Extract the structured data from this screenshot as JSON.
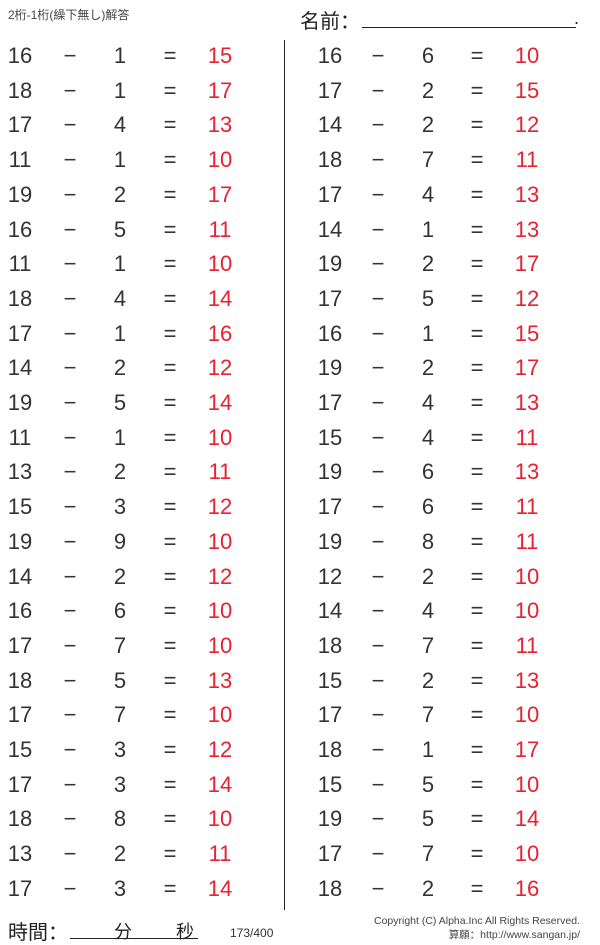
{
  "header": {
    "title": "2桁-1桁(繰下無し)解答",
    "name_label": "名前：",
    "name_end": "."
  },
  "colors": {
    "answer": "#e8202f",
    "text": "#333333"
  },
  "operator": "−",
  "equals": "=",
  "problems": {
    "left": [
      [
        16,
        1,
        15
      ],
      [
        18,
        1,
        17
      ],
      [
        17,
        4,
        13
      ],
      [
        11,
        1,
        10
      ],
      [
        19,
        2,
        17
      ],
      [
        16,
        5,
        11
      ],
      [
        11,
        1,
        10
      ],
      [
        18,
        4,
        14
      ],
      [
        17,
        1,
        16
      ],
      [
        14,
        2,
        12
      ],
      [
        19,
        5,
        14
      ],
      [
        11,
        1,
        10
      ],
      [
        13,
        2,
        11
      ],
      [
        15,
        3,
        12
      ],
      [
        19,
        9,
        10
      ],
      [
        14,
        2,
        12
      ],
      [
        16,
        6,
        10
      ],
      [
        17,
        7,
        10
      ],
      [
        18,
        5,
        13
      ],
      [
        17,
        7,
        10
      ],
      [
        15,
        3,
        12
      ],
      [
        17,
        3,
        14
      ],
      [
        18,
        8,
        10
      ],
      [
        13,
        2,
        11
      ],
      [
        17,
        3,
        14
      ]
    ],
    "right": [
      [
        16,
        6,
        10
      ],
      [
        17,
        2,
        15
      ],
      [
        14,
        2,
        12
      ],
      [
        18,
        7,
        11
      ],
      [
        17,
        4,
        13
      ],
      [
        14,
        1,
        13
      ],
      [
        19,
        2,
        17
      ],
      [
        17,
        5,
        12
      ],
      [
        16,
        1,
        15
      ],
      [
        19,
        2,
        17
      ],
      [
        17,
        4,
        13
      ],
      [
        15,
        4,
        11
      ],
      [
        19,
        6,
        13
      ],
      [
        17,
        6,
        11
      ],
      [
        19,
        8,
        11
      ],
      [
        12,
        2,
        10
      ],
      [
        14,
        4,
        10
      ],
      [
        18,
        7,
        11
      ],
      [
        15,
        2,
        13
      ],
      [
        17,
        7,
        10
      ],
      [
        18,
        1,
        17
      ],
      [
        15,
        5,
        10
      ],
      [
        19,
        5,
        14
      ],
      [
        17,
        7,
        10
      ],
      [
        18,
        2,
        16
      ]
    ]
  },
  "footer": {
    "time_label": "時間：",
    "minutes_label": "分",
    "seconds_label": "秒",
    "page": "173/400",
    "copyright": "Copyright (C) Alpha.Inc All Rights Reserved.",
    "source": "算願：http://www.sangan.jp/"
  }
}
